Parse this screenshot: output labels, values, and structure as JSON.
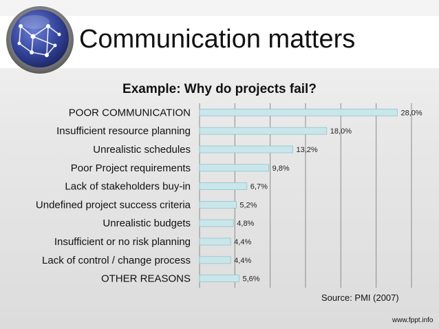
{
  "slide": {
    "title": "Communication matters",
    "source": "Source: PMI (2007)",
    "watermark": "www.fppt.info"
  },
  "chart_data": {
    "type": "bar",
    "orientation": "horizontal",
    "title": "Example: Why do projects fail?",
    "categories": [
      "POOR COMMUNICATION",
      "Insufficient resource planning",
      "Unrealistic schedules",
      "Poor Project requirements",
      "Lack of stakeholders buy-in",
      "Undefined project success criteria",
      "Unrealistic budgets",
      "Insufficient or no risk planning",
      "Lack of control / change process",
      "OTHER REASONS"
    ],
    "values": [
      28.0,
      18.0,
      13.2,
      9.8,
      6.7,
      5.2,
      4.8,
      4.4,
      4.4,
      5.6
    ],
    "labels": [
      "28,0%",
      "18,0%",
      "13,2%",
      "9,8%",
      "6,7%",
      "5,2%",
      "4,8%",
      "4,4%",
      "4,4%",
      "5,6%"
    ],
    "xlim": [
      0,
      30
    ],
    "grid": true,
    "bar_color": "#c9e6ea",
    "bar_edge_color": "#8fc4cc",
    "xlabel": "",
    "ylabel": ""
  }
}
